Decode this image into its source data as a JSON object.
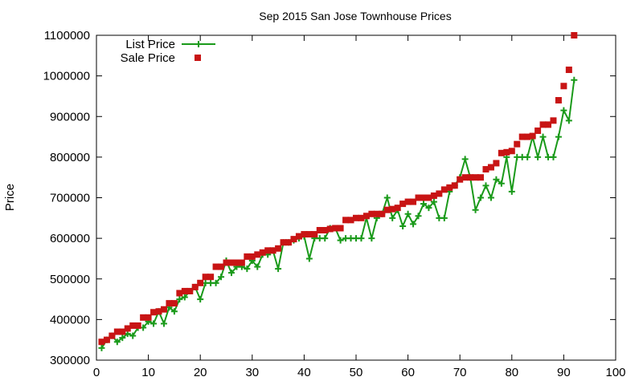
{
  "chart_data": {
    "type": "line",
    "title": "Sep 2015 San Jose Townhouse Prices",
    "xlabel": "",
    "ylabel": "Price",
    "xlim": [
      0,
      100
    ],
    "ylim": [
      300000,
      1100000
    ],
    "x_ticks": [
      0,
      10,
      20,
      30,
      40,
      50,
      60,
      70,
      80,
      90,
      100
    ],
    "y_ticks": [
      300000,
      400000,
      500000,
      600000,
      700000,
      800000,
      900000,
      1000000,
      1100000
    ],
    "grid": false,
    "legend_position": "top-left",
    "series": [
      {
        "name": "List Price",
        "style": "line with plus markers",
        "color": "#1a9a1a",
        "x": [
          1,
          2,
          3,
          4,
          5,
          6,
          7,
          8,
          9,
          10,
          11,
          12,
          13,
          14,
          15,
          16,
          17,
          18,
          19,
          20,
          21,
          22,
          23,
          24,
          25,
          26,
          27,
          28,
          29,
          30,
          31,
          32,
          33,
          34,
          35,
          36,
          37,
          38,
          39,
          40,
          41,
          42,
          43,
          44,
          45,
          46,
          47,
          48,
          49,
          50,
          51,
          52,
          53,
          54,
          55,
          56,
          57,
          58,
          59,
          60,
          61,
          62,
          63,
          64,
          65,
          66,
          67,
          68,
          69,
          70,
          71,
          72,
          73,
          74,
          75,
          76,
          77,
          78,
          79,
          80,
          81,
          82,
          83,
          84,
          85,
          86,
          87,
          88,
          89,
          90,
          91,
          92
        ],
        "y": [
          330000,
          350000,
          360000,
          345000,
          355000,
          365000,
          360000,
          380000,
          380000,
          395000,
          390000,
          420000,
          390000,
          430000,
          420000,
          450000,
          455000,
          470000,
          480000,
          450000,
          490000,
          490000,
          490000,
          505000,
          545000,
          515000,
          530000,
          530000,
          525000,
          545000,
          530000,
          560000,
          560000,
          570000,
          525000,
          590000,
          590000,
          595000,
          600000,
          605000,
          550000,
          600000,
          600000,
          600000,
          625000,
          625000,
          595000,
          600000,
          600000,
          600000,
          600000,
          650000,
          600000,
          650000,
          660000,
          700000,
          650000,
          670000,
          630000,
          660000,
          635000,
          655000,
          685000,
          675000,
          690000,
          650000,
          650000,
          715000,
          730000,
          750000,
          795000,
          750000,
          670000,
          700000,
          730000,
          700000,
          745000,
          735000,
          800000,
          715000,
          800000,
          800000,
          800000,
          850000,
          800000,
          850000,
          800000,
          800000,
          850000,
          915000,
          890000,
          990000
        ]
      },
      {
        "name": "Sale Price",
        "style": "square markers",
        "color": "#c81414",
        "x": [
          1,
          2,
          3,
          4,
          5,
          6,
          7,
          8,
          9,
          10,
          11,
          12,
          13,
          14,
          15,
          16,
          17,
          18,
          19,
          20,
          21,
          22,
          23,
          24,
          25,
          26,
          27,
          28,
          29,
          30,
          31,
          32,
          33,
          34,
          35,
          36,
          37,
          38,
          39,
          40,
          41,
          42,
          43,
          44,
          45,
          46,
          47,
          48,
          49,
          50,
          51,
          52,
          53,
          54,
          55,
          56,
          57,
          58,
          59,
          60,
          61,
          62,
          63,
          64,
          65,
          66,
          67,
          68,
          69,
          70,
          71,
          72,
          73,
          74,
          75,
          76,
          77,
          78,
          79,
          80,
          81,
          82,
          83,
          84,
          85,
          86,
          87,
          88,
          89,
          90,
          91,
          92
        ],
        "y": [
          345000,
          350000,
          360000,
          370000,
          370000,
          378000,
          385000,
          385000,
          405000,
          405000,
          418000,
          420000,
          425000,
          440000,
          440000,
          465000,
          470000,
          470000,
          480000,
          490000,
          505000,
          505000,
          530000,
          530000,
          540000,
          540000,
          540000,
          540000,
          555000,
          555000,
          560000,
          565000,
          570000,
          570000,
          575000,
          590000,
          590000,
          598000,
          605000,
          610000,
          610000,
          610000,
          620000,
          620000,
          623000,
          625000,
          625000,
          645000,
          645000,
          650000,
          650000,
          655000,
          660000,
          660000,
          660000,
          670000,
          672000,
          675000,
          685000,
          690000,
          690000,
          700000,
          700000,
          700000,
          705000,
          710000,
          720000,
          725000,
          730000,
          745000,
          750000,
          750000,
          750000,
          750000,
          770000,
          775000,
          785000,
          810000,
          812000,
          815000,
          832000,
          850000,
          850000,
          852000,
          865000,
          880000,
          880000,
          890000,
          940000,
          975000,
          1015000,
          1100000
        ]
      }
    ]
  }
}
